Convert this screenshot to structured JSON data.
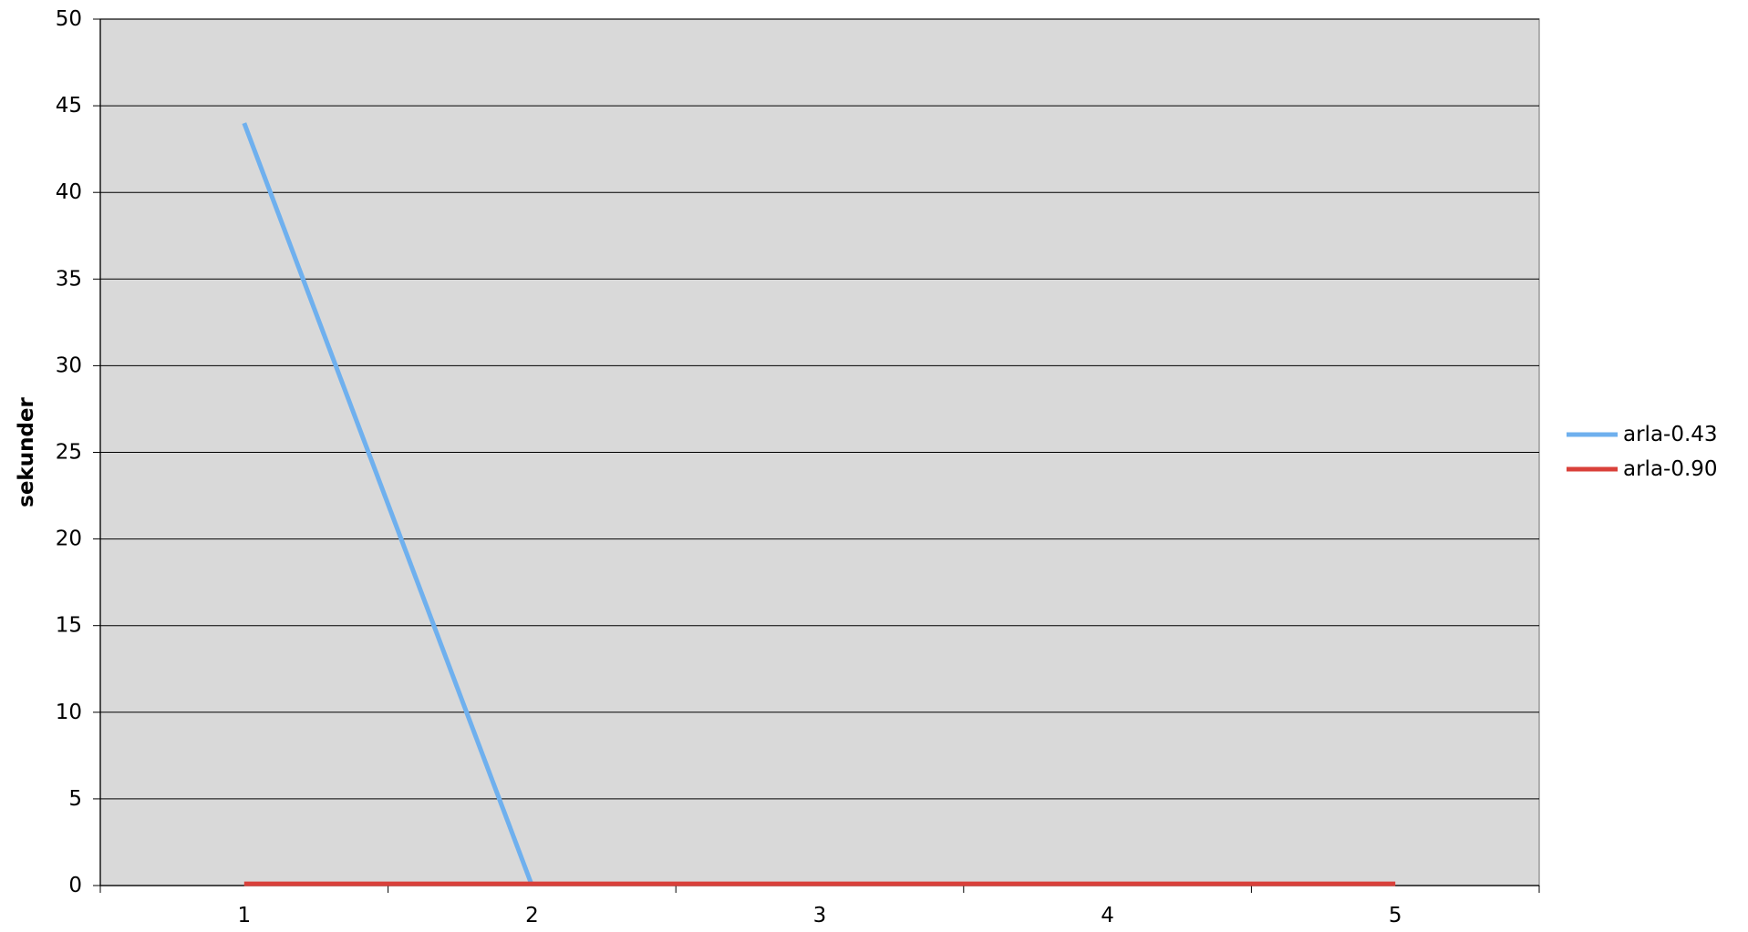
{
  "chart_data": {
    "type": "line",
    "title": "",
    "xlabel": "",
    "ylabel": "sekunder",
    "categories": [
      "1",
      "2",
      "3",
      "4",
      "5"
    ],
    "ylim": [
      0,
      50
    ],
    "yticks": [
      "0",
      "5",
      "10",
      "15",
      "20",
      "25",
      "30",
      "35",
      "40",
      "45",
      "50"
    ],
    "grid": true,
    "legend_position": "right",
    "background": "#d9d9d9",
    "series": [
      {
        "name": "arla-0.43",
        "color": "#6fb0ee",
        "values": [
          44,
          0,
          null,
          null,
          null
        ]
      },
      {
        "name": "arla-0.90",
        "color": "#d9403a",
        "values": [
          0.1,
          0.1,
          0.1,
          0.1,
          0.1
        ]
      }
    ]
  }
}
